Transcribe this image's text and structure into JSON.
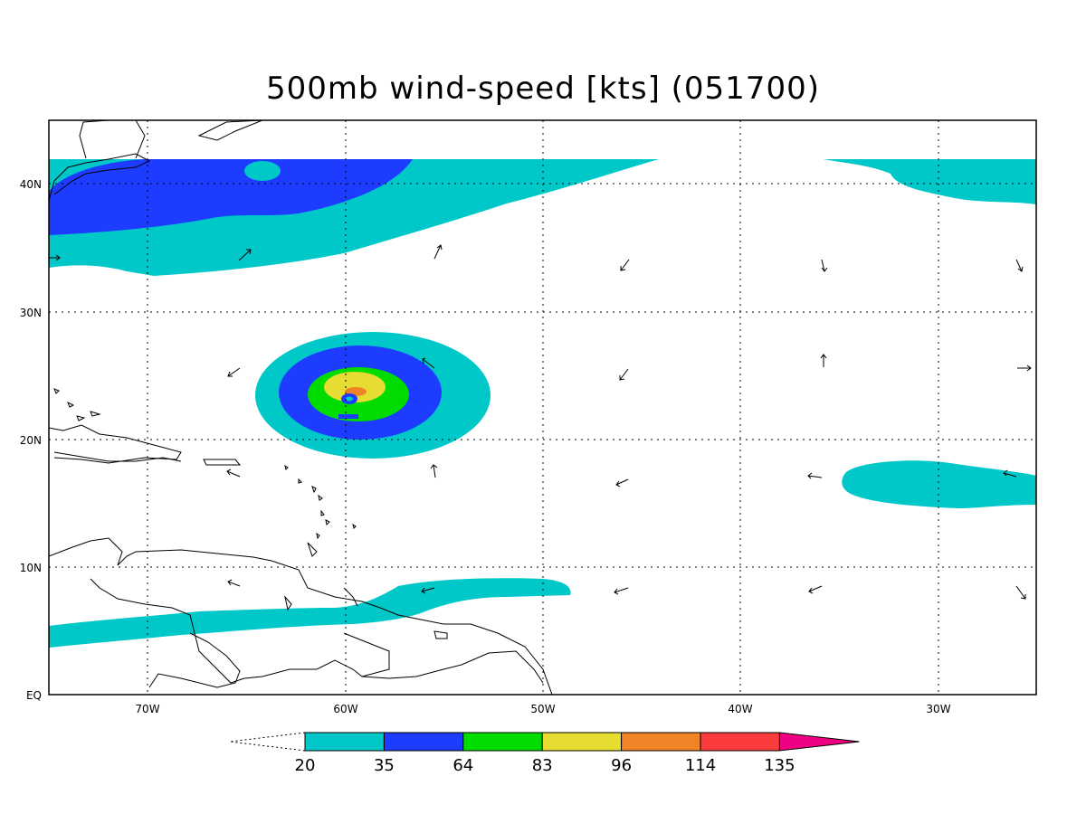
{
  "title": "500mb wind-speed [kts] (051700)",
  "axes": {
    "x_ticks": [
      "70W",
      "60W",
      "50W",
      "40W",
      "30W"
    ],
    "y_ticks": [
      "EQ",
      "10N",
      "20N",
      "30N",
      "40N"
    ]
  },
  "colorbar": {
    "levels": [
      "20",
      "35",
      "64",
      "83",
      "96",
      "114",
      "135"
    ],
    "colors": [
      "#00c8c8",
      "#1e3cff",
      "#00dc00",
      "#e6dc32",
      "#f08228",
      "#fa3c3c",
      "#f00082"
    ]
  },
  "colors": {
    "frame": "#000000",
    "grid": "#000000"
  }
}
